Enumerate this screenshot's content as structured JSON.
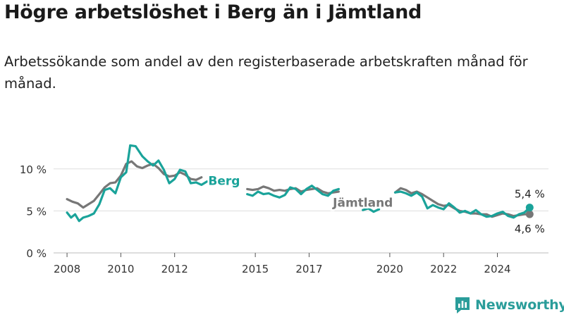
{
  "title": "Högre arbetslöshet i Berg än i Jämtland",
  "subtitle": "Arbetssökande som andel av den registerbaserade arbetskraften månad för månad.",
  "logo_text": "Newsworthy",
  "chart_data": {
    "type": "line",
    "title": "Högre arbetslöshet i Berg än i Jämtland",
    "ylim": [
      0,
      12.5
    ],
    "xlim": [
      2007.5,
      2025.9
    ],
    "yticks": [
      {
        "value": 0,
        "label": "0 %"
      },
      {
        "value": 5,
        "label": "5 %"
      },
      {
        "value": 10,
        "label": "10 %"
      }
    ],
    "xticks": [
      {
        "value": 2008,
        "label": "2008"
      },
      {
        "value": 2010,
        "label": "2010"
      },
      {
        "value": 2012,
        "label": "2012"
      },
      {
        "value": 2015,
        "label": "2015"
      },
      {
        "value": 2017,
        "label": "2017"
      },
      {
        "value": 2020,
        "label": "2020"
      },
      {
        "value": 2022,
        "label": "2022"
      },
      {
        "value": 2024,
        "label": "2024"
      }
    ],
    "grid": true,
    "series": [
      {
        "name": "Jämtland",
        "color": "#777777",
        "end_label": "4,6 %",
        "points": [
          [
            2008.0,
            6.4
          ],
          [
            2008.2,
            6.1
          ],
          [
            2008.4,
            5.9
          ],
          [
            2008.6,
            5.4
          ],
          [
            2008.8,
            5.8
          ],
          [
            2009.0,
            6.2
          ],
          [
            2009.2,
            7.0
          ],
          [
            2009.4,
            7.8
          ],
          [
            2009.6,
            8.3
          ],
          [
            2009.8,
            8.4
          ],
          [
            2010.0,
            9.2
          ],
          [
            2010.2,
            10.6
          ],
          [
            2010.4,
            10.9
          ],
          [
            2010.6,
            10.3
          ],
          [
            2010.8,
            10.1
          ],
          [
            2011.0,
            10.4
          ],
          [
            2011.2,
            10.6
          ],
          [
            2011.4,
            10.1
          ],
          [
            2011.6,
            9.4
          ],
          [
            2011.8,
            9.1
          ],
          [
            2012.0,
            9.2
          ],
          [
            2012.2,
            9.6
          ],
          [
            2012.4,
            9.3
          ],
          [
            2012.6,
            8.8
          ],
          [
            2012.8,
            8.7
          ],
          [
            2013.0,
            9.0
          ],
          null,
          [
            2014.7,
            7.6
          ],
          [
            2014.9,
            7.5
          ],
          [
            2015.1,
            7.6
          ],
          [
            2015.3,
            7.9
          ],
          [
            2015.5,
            7.7
          ],
          [
            2015.7,
            7.4
          ],
          [
            2015.9,
            7.5
          ],
          [
            2016.1,
            7.4
          ],
          [
            2016.3,
            7.6
          ],
          [
            2016.5,
            7.7
          ],
          [
            2016.7,
            7.3
          ],
          [
            2016.9,
            7.5
          ],
          [
            2017.1,
            7.6
          ],
          [
            2017.3,
            7.7
          ],
          [
            2017.5,
            7.3
          ],
          [
            2017.7,
            7.1
          ],
          [
            2017.9,
            7.2
          ],
          [
            2018.1,
            7.3
          ],
          null,
          [
            2020.2,
            7.2
          ],
          [
            2020.4,
            7.7
          ],
          [
            2020.6,
            7.5
          ],
          [
            2020.8,
            7.1
          ],
          [
            2021.0,
            7.3
          ],
          [
            2021.2,
            7.0
          ],
          [
            2021.4,
            6.6
          ],
          [
            2021.6,
            6.2
          ],
          [
            2021.8,
            5.8
          ],
          [
            2022.0,
            5.6
          ],
          [
            2022.2,
            5.7
          ],
          [
            2022.4,
            5.3
          ],
          [
            2022.6,
            5.0
          ],
          [
            2022.8,
            4.9
          ],
          [
            2023.0,
            4.7
          ],
          [
            2023.2,
            4.7
          ],
          [
            2023.4,
            4.6
          ],
          [
            2023.6,
            4.6
          ],
          [
            2023.8,
            4.3
          ],
          [
            2024.0,
            4.5
          ],
          [
            2024.2,
            4.7
          ],
          [
            2024.4,
            4.6
          ],
          [
            2024.6,
            4.4
          ],
          [
            2024.8,
            4.5
          ],
          [
            2025.0,
            4.6
          ],
          [
            2025.2,
            4.6
          ]
        ]
      },
      {
        "name": "Berg",
        "color": "#1aa39a",
        "end_label": "5,4 %",
        "points": [
          [
            2008.0,
            4.8
          ],
          [
            2008.15,
            4.2
          ],
          [
            2008.3,
            4.6
          ],
          [
            2008.45,
            3.8
          ],
          [
            2008.6,
            4.2
          ],
          [
            2008.8,
            4.4
          ],
          [
            2009.0,
            4.7
          ],
          [
            2009.2,
            5.8
          ],
          [
            2009.4,
            7.5
          ],
          [
            2009.6,
            7.7
          ],
          [
            2009.8,
            7.1
          ],
          [
            2010.0,
            9.0
          ],
          [
            2010.2,
            9.6
          ],
          [
            2010.35,
            12.8
          ],
          [
            2010.55,
            12.7
          ],
          [
            2010.8,
            11.5
          ],
          [
            2011.0,
            10.9
          ],
          [
            2011.2,
            10.4
          ],
          [
            2011.4,
            11.0
          ],
          [
            2011.6,
            9.9
          ],
          [
            2011.8,
            8.3
          ],
          [
            2012.0,
            8.8
          ],
          [
            2012.2,
            9.9
          ],
          [
            2012.4,
            9.7
          ],
          [
            2012.6,
            8.3
          ],
          [
            2012.8,
            8.4
          ],
          [
            2013.0,
            8.1
          ],
          [
            2013.2,
            8.5
          ],
          null,
          [
            2014.7,
            7.0
          ],
          [
            2014.9,
            6.8
          ],
          [
            2015.1,
            7.3
          ],
          [
            2015.3,
            7.0
          ],
          [
            2015.5,
            7.1
          ],
          [
            2015.7,
            6.8
          ],
          [
            2015.9,
            6.6
          ],
          [
            2016.1,
            6.9
          ],
          [
            2016.3,
            7.8
          ],
          [
            2016.5,
            7.6
          ],
          [
            2016.7,
            7.0
          ],
          [
            2016.9,
            7.6
          ],
          [
            2017.1,
            8.0
          ],
          [
            2017.3,
            7.5
          ],
          [
            2017.5,
            7.0
          ],
          [
            2017.7,
            6.8
          ],
          [
            2017.9,
            7.4
          ],
          [
            2018.1,
            7.6
          ],
          null,
          [
            2019.0,
            5.1
          ],
          [
            2019.2,
            5.3
          ],
          [
            2019.4,
            4.9
          ],
          [
            2019.6,
            5.2
          ],
          null,
          [
            2020.2,
            7.2
          ],
          [
            2020.4,
            7.3
          ],
          [
            2020.6,
            7.1
          ],
          [
            2020.8,
            6.8
          ],
          [
            2021.0,
            7.2
          ],
          [
            2021.2,
            6.7
          ],
          [
            2021.4,
            5.3
          ],
          [
            2021.6,
            5.7
          ],
          [
            2021.8,
            5.4
          ],
          [
            2022.0,
            5.2
          ],
          [
            2022.2,
            5.9
          ],
          [
            2022.4,
            5.4
          ],
          [
            2022.6,
            4.8
          ],
          [
            2022.8,
            5.0
          ],
          [
            2023.0,
            4.7
          ],
          [
            2023.2,
            5.1
          ],
          [
            2023.4,
            4.6
          ],
          [
            2023.6,
            4.3
          ],
          [
            2023.8,
            4.4
          ],
          [
            2024.0,
            4.7
          ],
          [
            2024.2,
            4.9
          ],
          [
            2024.4,
            4.4
          ],
          [
            2024.6,
            4.2
          ],
          [
            2024.8,
            4.6
          ],
          [
            2025.0,
            4.8
          ],
          [
            2025.2,
            5.4
          ]
        ]
      }
    ],
    "annotations": [
      {
        "text": "Berg",
        "series": "Berg"
      },
      {
        "text": "Jämtland",
        "series": "Jämtland"
      }
    ]
  }
}
